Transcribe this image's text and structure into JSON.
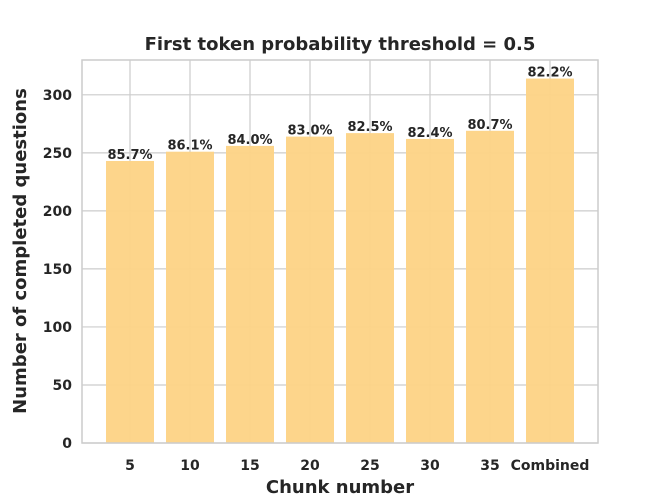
{
  "chart_data": {
    "type": "bar",
    "title": "First token probability threshold = 0.5",
    "xlabel": "Chunk number",
    "ylabel": "Number of completed questions",
    "categories": [
      "5",
      "10",
      "15",
      "20",
      "25",
      "30",
      "35",
      "Combined"
    ],
    "values": [
      243,
      251,
      256,
      264,
      267,
      262,
      269,
      314
    ],
    "data_labels": [
      "85.7%",
      "86.1%",
      "84.0%",
      "83.0%",
      "82.5%",
      "82.4%",
      "80.7%",
      "82.2%"
    ],
    "yticks": [
      0,
      50,
      100,
      150,
      200,
      250,
      300
    ],
    "ylim": [
      0,
      330
    ],
    "grid": true,
    "bar_color": "#fdd385"
  }
}
